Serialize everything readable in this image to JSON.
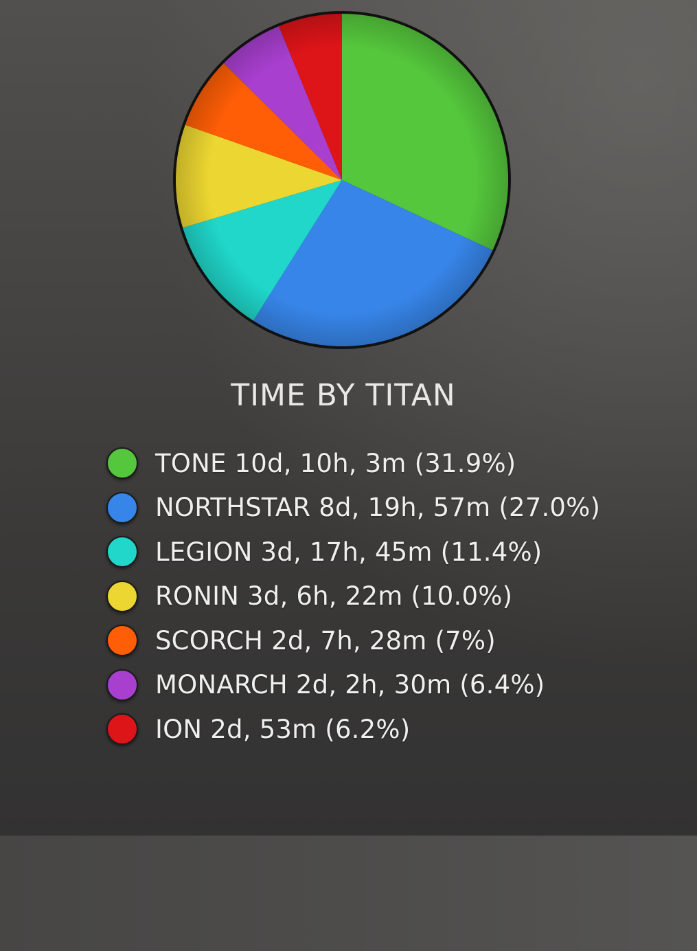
{
  "chart_data": {
    "type": "pie",
    "title": "TIME BY TITAN",
    "legend_position": "bottom",
    "slices": [
      {
        "label": "TONE 10d, 10h, 3m (31.9%)",
        "value": 31.9,
        "color": "#55c73c"
      },
      {
        "label": "NORTHSTAR 8d, 19h, 57m (27.0%)",
        "value": 27.0,
        "color": "#3785e8"
      },
      {
        "label": "LEGION 3d, 17h, 45m (11.4%)",
        "value": 11.4,
        "color": "#20d7ca"
      },
      {
        "label": "RONIN 3d, 6h, 22m (10.0%)",
        "value": 10.0,
        "color": "#ecd631"
      },
      {
        "label": "SCORCH 2d, 7h, 28m (7%)",
        "value": 7.0,
        "color": "#ff5e06"
      },
      {
        "label": "MONARCH 2d, 2h, 30m (6.4%)",
        "value": 6.4,
        "color": "#a83fcf"
      },
      {
        "label": "ION 2d, 53m (6.2%)",
        "value": 6.2,
        "color": "#dd1418"
      }
    ]
  }
}
